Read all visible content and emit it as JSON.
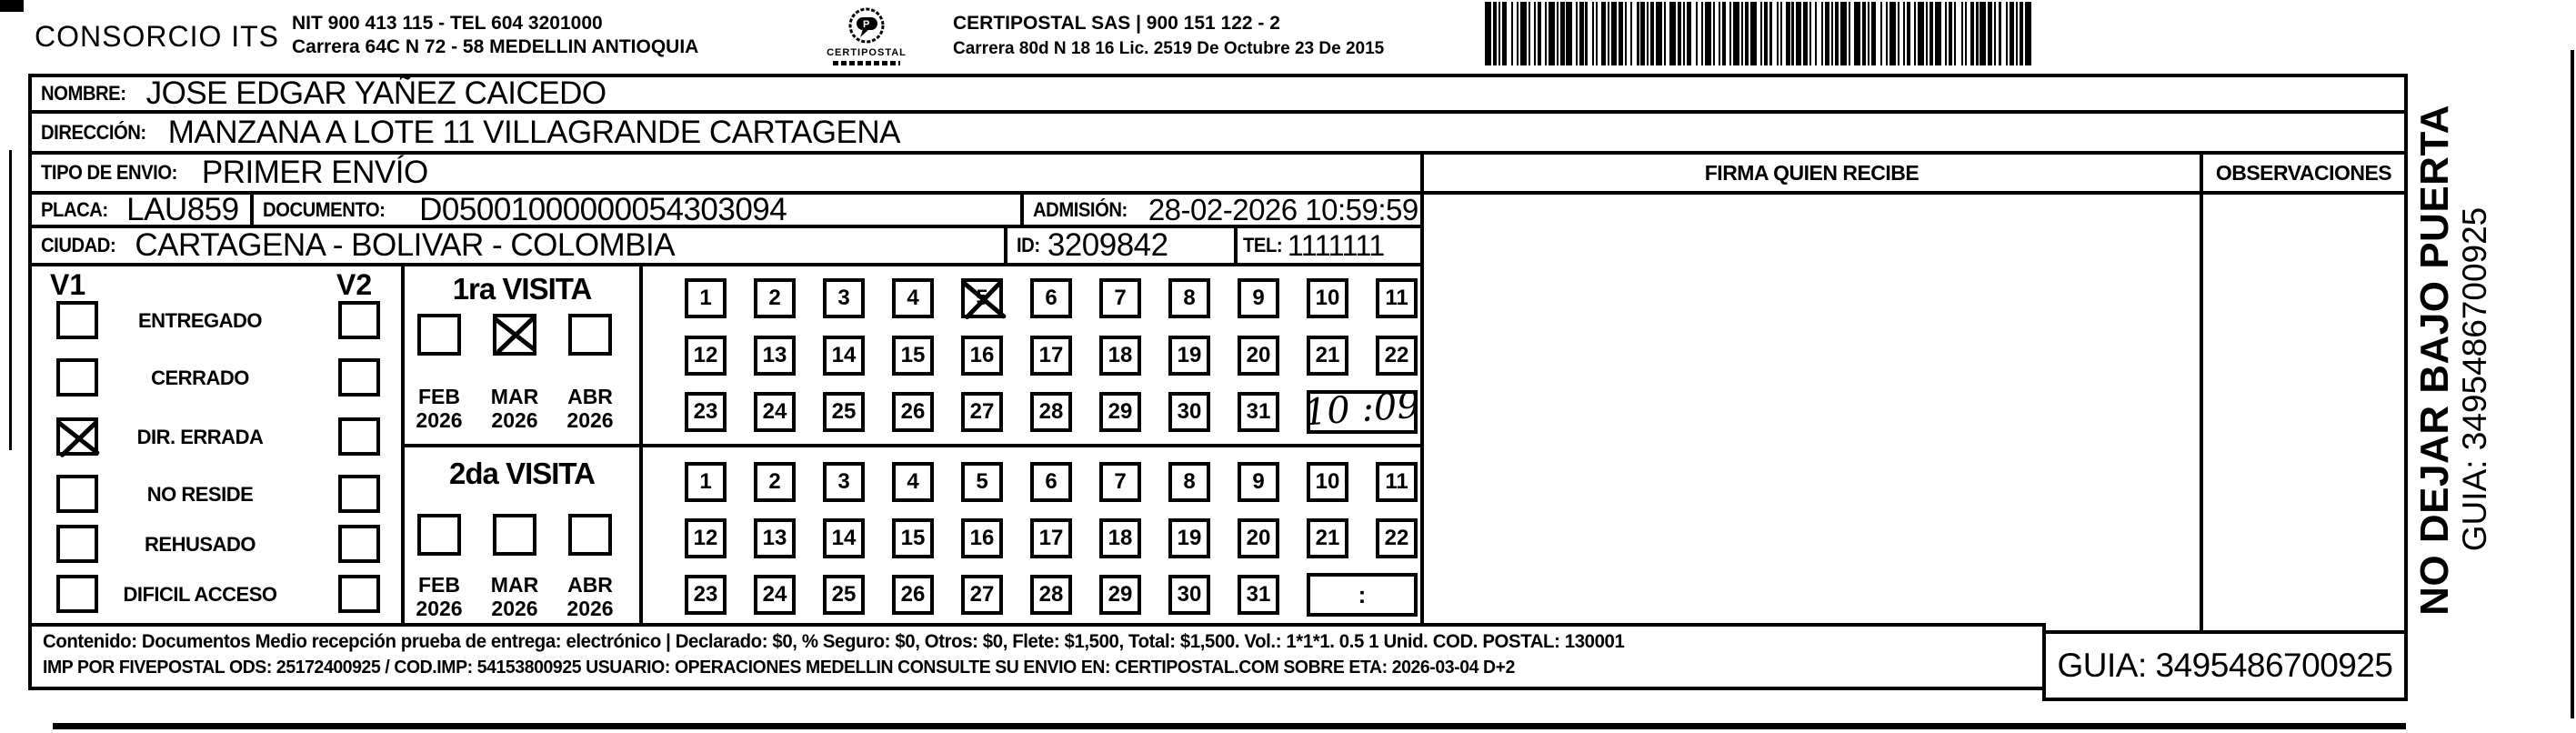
{
  "header": {
    "company": "CONSORCIO ITS",
    "nit_line1": "NIT 900 413 115 - TEL 604 3201000",
    "nit_line2": "Carrera 64C N 72 - 58 MEDELLIN ANTIOQUIA",
    "logo_caption": "CERTIPOSTAL",
    "certipostal_line1": "CERTIPOSTAL SAS | 900 151 122 - 2",
    "certipostal_line2": "Carrera 80d N 18 16  Lic. 2519 De Octubre 23 De 2015"
  },
  "recipient": {
    "nombre_label": "NOMBRE:",
    "nombre": "JOSE EDGAR YAÑEZ CAICEDO",
    "direccion_label": "DIRECCIÓN:",
    "direccion": "MANZANA A LOTE 11 VILLAGRANDE CARTAGENA",
    "tipo_envio_label": "TIPO DE ENVIO:",
    "tipo_envio": "PRIMER ENVÍO",
    "placa_label": "PLACA:",
    "placa": "LAU859",
    "documento_label": "DOCUMENTO:",
    "documento": "D05001000000054303094",
    "admision_label": "ADMISIÓN:",
    "admision": "28-02-2026 10:59:59",
    "ciudad_label": "CIUDAD:",
    "ciudad": "CARTAGENA - BOLIVAR - COLOMBIA",
    "id_label": "ID:",
    "id_value": "3209842",
    "tel_label": "TEL:",
    "tel": "1111111"
  },
  "signature": {
    "firma_header": "FIRMA QUIEN RECIBE",
    "observaciones_header": "OBSERVACIONES"
  },
  "status": {
    "v1_label": "V1",
    "v2_label": "V2",
    "options": [
      {
        "label": "ENTREGADO",
        "v1_checked": false,
        "v2_checked": false
      },
      {
        "label": "CERRADO",
        "v1_checked": false,
        "v2_checked": false
      },
      {
        "label": "DIR. ERRADA",
        "v1_checked": true,
        "v2_checked": false
      },
      {
        "label": "NO RESIDE",
        "v1_checked": false,
        "v2_checked": false
      },
      {
        "label": "REHUSADO",
        "v1_checked": false,
        "v2_checked": false
      },
      {
        "label": "DIFICIL ACCESO",
        "v1_checked": false,
        "v2_checked": false
      }
    ]
  },
  "visits": [
    {
      "title": "1ra VISITA",
      "months": [
        {
          "month": "FEB",
          "year": "2026",
          "checked": false
        },
        {
          "month": "MAR",
          "year": "2026",
          "checked": true
        },
        {
          "month": "ABR",
          "year": "2026",
          "checked": false
        }
      ],
      "day_count": 31,
      "checked_day": 5,
      "time_value": "10 :09",
      "handwritten": true
    },
    {
      "title": "2da VISITA",
      "months": [
        {
          "month": "FEB",
          "year": "2026",
          "checked": false
        },
        {
          "month": "MAR",
          "year": "2026",
          "checked": false
        },
        {
          "month": "ABR",
          "year": "2026",
          "checked": false
        }
      ],
      "day_count": 31,
      "checked_day": null,
      "time_value": ":",
      "handwritten": false
    }
  ],
  "footer": {
    "line1": "Contenido: Documentos Medio recepción prueba de entrega: electrónico | Declarado: $0, % Seguro: $0, Otros: $0, Flete: $1,500, Total: $1,500. Vol.: 1*1*1. 0.5  1 Unid. COD. POSTAL: 130001",
    "line2": "IMP POR FIVEPOSTAL ODS: 25172400925 / COD.IMP: 54153800925 USUARIO: OPERACIONES MEDELLIN CONSULTE SU ENVIO EN: CERTIPOSTAL.COM SOBRE ETA: 2026-03-04 D+2",
    "guia": "GUIA: 3495486700925"
  },
  "sidebar": {
    "warning": "NO DEJAR BAJO PUERTA",
    "guia": "GUIA: 3495486700925"
  },
  "colors": {
    "ink": "#000000",
    "paper": "#ffffff"
  }
}
